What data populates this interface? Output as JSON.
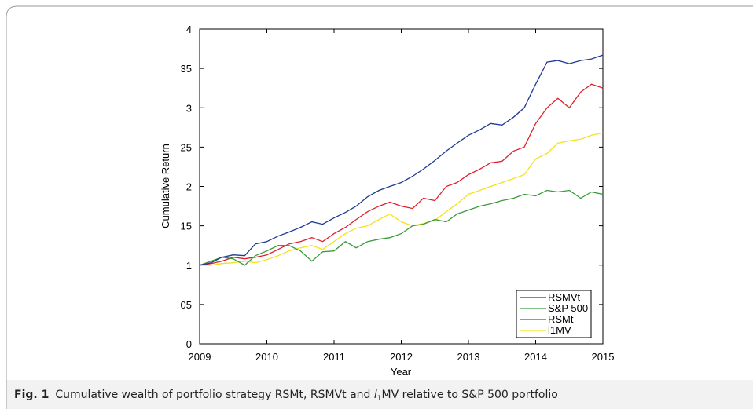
{
  "chart_data": {
    "type": "line",
    "xlabel": "Year",
    "ylabel": "Cumulative Return",
    "xlim": [
      2009,
      2015
    ],
    "xticks": [
      2009,
      2010,
      2011,
      2012,
      2013,
      2014,
      2015
    ],
    "ylim": [
      0,
      4
    ],
    "yticks": [
      0,
      {
        "value": 0.5,
        "label": "05"
      },
      1,
      {
        "value": 1.5,
        "label": "15"
      },
      2,
      {
        "value": 2.5,
        "label": "25"
      },
      3,
      {
        "value": 3.5,
        "label": "35"
      },
      4
    ],
    "legend": "lower right",
    "x": [
      2009,
      2009.17,
      2009.33,
      2009.5,
      2009.67,
      2009.83,
      2010,
      2010.17,
      2010.33,
      2010.5,
      2010.67,
      2010.83,
      2011,
      2011.17,
      2011.33,
      2011.5,
      2011.67,
      2011.83,
      2012,
      2012.17,
      2012.33,
      2012.5,
      2012.67,
      2012.83,
      2013,
      2013.17,
      2013.33,
      2013.5,
      2013.67,
      2013.83,
      2014,
      2014.17,
      2014.33,
      2014.5,
      2014.67,
      2014.83,
      2015
    ],
    "series": [
      {
        "name": "RSMVt",
        "color": "#1f3a93",
        "values": [
          1.0,
          1.03,
          1.1,
          1.13,
          1.12,
          1.27,
          1.3,
          1.37,
          1.42,
          1.48,
          1.55,
          1.52,
          1.6,
          1.67,
          1.75,
          1.87,
          1.95,
          2.0,
          2.05,
          2.13,
          2.22,
          2.33,
          2.45,
          2.55,
          2.65,
          2.72,
          2.8,
          2.78,
          2.88,
          3.0,
          3.3,
          3.58,
          3.6,
          3.56,
          3.6,
          3.62,
          3.67
        ]
      },
      {
        "name": "S&P 500",
        "color": "#3a9a3a",
        "values": [
          1.0,
          1.05,
          1.1,
          1.08,
          1.0,
          1.12,
          1.18,
          1.25,
          1.25,
          1.18,
          1.05,
          1.17,
          1.18,
          1.3,
          1.22,
          1.3,
          1.33,
          1.35,
          1.4,
          1.5,
          1.52,
          1.58,
          1.55,
          1.65,
          1.7,
          1.75,
          1.78,
          1.82,
          1.85,
          1.9,
          1.88,
          1.95,
          1.93,
          1.95,
          1.85,
          1.93,
          1.9
        ]
      },
      {
        "name": "RSMt",
        "color": "#e0202a",
        "values": [
          1.0,
          1.02,
          1.05,
          1.1,
          1.08,
          1.1,
          1.13,
          1.2,
          1.27,
          1.3,
          1.35,
          1.3,
          1.4,
          1.48,
          1.58,
          1.68,
          1.75,
          1.8,
          1.75,
          1.72,
          1.85,
          1.82,
          2.0,
          2.05,
          2.15,
          2.22,
          2.3,
          2.32,
          2.45,
          2.5,
          2.8,
          3.0,
          3.12,
          3.0,
          3.2,
          3.3,
          3.25
        ]
      },
      {
        "name": "l1MV",
        "color": "#f2e21e",
        "values": [
          1.0,
          1.0,
          1.02,
          1.03,
          1.05,
          1.03,
          1.07,
          1.12,
          1.18,
          1.22,
          1.25,
          1.2,
          1.3,
          1.4,
          1.47,
          1.5,
          1.58,
          1.65,
          1.55,
          1.5,
          1.53,
          1.57,
          1.68,
          1.78,
          1.9,
          1.95,
          2.0,
          2.05,
          2.1,
          2.15,
          2.35,
          2.42,
          2.55,
          2.58,
          2.6,
          2.65,
          2.68
        ]
      }
    ]
  },
  "caption": {
    "label": "Fig. 1",
    "text_before": "Cumulative wealth of portfolio strategy RSMt, RSMVt and ",
    "text_italic": "l",
    "text_sub": "1",
    "text_after": "MV relative to S&P 500 portfolio"
  }
}
